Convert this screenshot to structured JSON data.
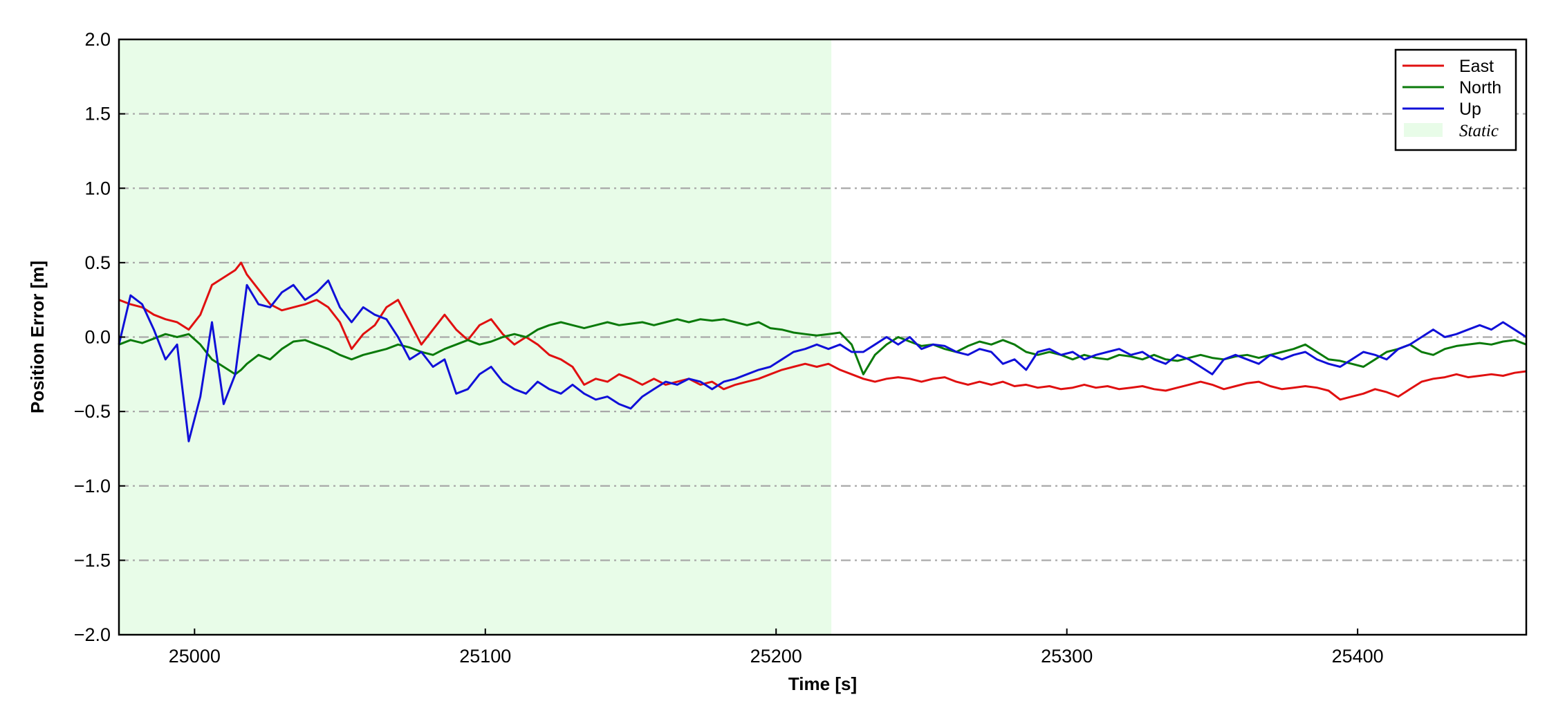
{
  "chart_data": {
    "type": "line",
    "xlabel": "Time [s]",
    "ylabel": "Position Error [m]",
    "xlim": [
      24974,
      25458
    ],
    "ylim": [
      -2.0,
      2.0
    ],
    "xticks": [
      25000,
      25100,
      25200,
      25300,
      25400
    ],
    "xtick_labels": [
      "25000",
      "25100",
      "25200",
      "25300",
      "25400"
    ],
    "yticks": [
      2.0,
      1.5,
      1.0,
      0.5,
      0.0,
      -0.5,
      -1.0,
      -1.5,
      -2.0
    ],
    "ytick_labels": [
      "2.0",
      "1.5",
      "1.0",
      "0.5",
      "0.0",
      "−0.5",
      "−1.0",
      "−1.5",
      "−2.0"
    ],
    "grid": "horizontal dash-dot",
    "legend_position": "top-right",
    "shaded_region": {
      "label": "Static",
      "x_start": 24974,
      "x_end": 25219,
      "color": "#e8fce8"
    },
    "x": [
      24974,
      24978,
      24982,
      24986,
      24990,
      24994,
      24998,
      25002,
      25006,
      25010,
      25014,
      25016,
      25018,
      25022,
      25026,
      25030,
      25034,
      25038,
      25042,
      25046,
      25050,
      25054,
      25058,
      25062,
      25066,
      25070,
      25074,
      25078,
      25082,
      25086,
      25090,
      25094,
      25098,
      25102,
      25106,
      25110,
      25114,
      25118,
      25122,
      25126,
      25130,
      25134,
      25138,
      25142,
      25146,
      25150,
      25154,
      25158,
      25162,
      25166,
      25170,
      25174,
      25178,
      25182,
      25186,
      25190,
      25194,
      25198,
      25202,
      25206,
      25210,
      25214,
      25218,
      25222,
      25226,
      25230,
      25234,
      25238,
      25242,
      25246,
      25250,
      25254,
      25258,
      25262,
      25266,
      25270,
      25274,
      25278,
      25282,
      25286,
      25290,
      25294,
      25298,
      25302,
      25306,
      25310,
      25314,
      25318,
      25322,
      25326,
      25330,
      25334,
      25338,
      25342,
      25346,
      25350,
      25354,
      25358,
      25362,
      25366,
      25370,
      25374,
      25378,
      25382,
      25386,
      25390,
      25394,
      25398,
      25402,
      25406,
      25410,
      25414,
      25418,
      25422,
      25426,
      25430,
      25434,
      25438,
      25442,
      25446,
      25450,
      25454,
      25458
    ],
    "series": [
      {
        "name": "East",
        "color": "#e01010",
        "values": [
          0.25,
          0.22,
          0.2,
          0.15,
          0.12,
          0.1,
          0.05,
          0.15,
          0.35,
          0.4,
          0.45,
          0.5,
          0.42,
          0.32,
          0.22,
          0.18,
          0.2,
          0.22,
          0.25,
          0.2,
          0.1,
          -0.08,
          0.02,
          0.08,
          0.2,
          0.25,
          0.1,
          -0.05,
          0.05,
          0.15,
          0.05,
          -0.02,
          0.08,
          0.12,
          0.02,
          -0.05,
          0.0,
          -0.05,
          -0.12,
          -0.15,
          -0.2,
          -0.32,
          -0.28,
          -0.3,
          -0.25,
          -0.28,
          -0.32,
          -0.28,
          -0.32,
          -0.3,
          -0.28,
          -0.32,
          -0.3,
          -0.35,
          -0.32,
          -0.3,
          -0.28,
          -0.25,
          -0.22,
          -0.2,
          -0.18,
          -0.2,
          -0.18,
          -0.22,
          -0.25,
          -0.28,
          -0.3,
          -0.28,
          -0.27,
          -0.28,
          -0.3,
          -0.28,
          -0.27,
          -0.3,
          -0.32,
          -0.3,
          -0.32,
          -0.3,
          -0.33,
          -0.32,
          -0.34,
          -0.33,
          -0.35,
          -0.34,
          -0.32,
          -0.34,
          -0.33,
          -0.35,
          -0.34,
          -0.33,
          -0.35,
          -0.36,
          -0.34,
          -0.32,
          -0.3,
          -0.32,
          -0.35,
          -0.33,
          -0.31,
          -0.3,
          -0.33,
          -0.35,
          -0.34,
          -0.33,
          -0.34,
          -0.36,
          -0.42,
          -0.4,
          -0.38,
          -0.35,
          -0.37,
          -0.4,
          -0.35,
          -0.3,
          -0.28,
          -0.27,
          -0.25,
          -0.27,
          -0.26,
          -0.25,
          -0.26,
          -0.24,
          -0.23
        ]
      },
      {
        "name": "North",
        "color": "#0a7a0a",
        "values": [
          -0.05,
          -0.02,
          -0.04,
          -0.01,
          0.02,
          0.0,
          0.02,
          -0.05,
          -0.15,
          -0.2,
          -0.25,
          -0.22,
          -0.18,
          -0.12,
          -0.15,
          -0.08,
          -0.03,
          -0.02,
          -0.05,
          -0.08,
          -0.12,
          -0.15,
          -0.12,
          -0.1,
          -0.08,
          -0.05,
          -0.07,
          -0.1,
          -0.12,
          -0.08,
          -0.05,
          -0.02,
          -0.05,
          -0.03,
          0.0,
          0.02,
          0.0,
          0.05,
          0.08,
          0.1,
          0.08,
          0.06,
          0.08,
          0.1,
          0.08,
          0.09,
          0.1,
          0.08,
          0.1,
          0.12,
          0.1,
          0.12,
          0.11,
          0.12,
          0.1,
          0.08,
          0.1,
          0.06,
          0.05,
          0.03,
          0.02,
          0.01,
          0.02,
          0.03,
          -0.05,
          -0.25,
          -0.12,
          -0.05,
          0.0,
          -0.03,
          -0.06,
          -0.05,
          -0.08,
          -0.1,
          -0.06,
          -0.03,
          -0.05,
          -0.02,
          -0.05,
          -0.1,
          -0.12,
          -0.1,
          -0.12,
          -0.15,
          -0.12,
          -0.14,
          -0.15,
          -0.12,
          -0.13,
          -0.15,
          -0.12,
          -0.15,
          -0.16,
          -0.14,
          -0.12,
          -0.14,
          -0.15,
          -0.13,
          -0.12,
          -0.14,
          -0.12,
          -0.1,
          -0.08,
          -0.05,
          -0.1,
          -0.15,
          -0.16,
          -0.18,
          -0.2,
          -0.15,
          -0.1,
          -0.08,
          -0.05,
          -0.1,
          -0.12,
          -0.08,
          -0.06,
          -0.05,
          -0.04,
          -0.05,
          -0.03,
          -0.02,
          -0.05
        ]
      },
      {
        "name": "Up",
        "color": "#1010d8",
        "values": [
          -0.05,
          0.28,
          0.22,
          0.05,
          -0.15,
          -0.05,
          -0.7,
          -0.4,
          0.1,
          -0.45,
          -0.25,
          0.05,
          0.35,
          0.22,
          0.2,
          0.3,
          0.35,
          0.25,
          0.3,
          0.38,
          0.2,
          0.1,
          0.2,
          0.15,
          0.12,
          0.0,
          -0.15,
          -0.1,
          -0.2,
          -0.15,
          -0.38,
          -0.35,
          -0.25,
          -0.2,
          -0.3,
          -0.35,
          -0.38,
          -0.3,
          -0.35,
          -0.38,
          -0.32,
          -0.38,
          -0.42,
          -0.4,
          -0.45,
          -0.48,
          -0.4,
          -0.35,
          -0.3,
          -0.32,
          -0.28,
          -0.3,
          -0.35,
          -0.3,
          -0.28,
          -0.25,
          -0.22,
          -0.2,
          -0.15,
          -0.1,
          -0.08,
          -0.05,
          -0.08,
          -0.05,
          -0.1,
          -0.1,
          -0.05,
          0.0,
          -0.05,
          0.0,
          -0.08,
          -0.05,
          -0.06,
          -0.1,
          -0.12,
          -0.08,
          -0.1,
          -0.18,
          -0.15,
          -0.22,
          -0.1,
          -0.08,
          -0.12,
          -0.1,
          -0.15,
          -0.12,
          -0.1,
          -0.08,
          -0.12,
          -0.1,
          -0.15,
          -0.18,
          -0.12,
          -0.15,
          -0.2,
          -0.25,
          -0.15,
          -0.12,
          -0.15,
          -0.18,
          -0.12,
          -0.15,
          -0.12,
          -0.1,
          -0.15,
          -0.18,
          -0.2,
          -0.15,
          -0.1,
          -0.12,
          -0.15,
          -0.08,
          -0.05,
          0.0,
          0.05,
          0.0,
          0.02,
          0.05,
          0.08,
          0.05,
          0.1,
          0.05,
          0.0
        ]
      }
    ]
  },
  "legend": {
    "items": [
      {
        "label": "East",
        "color": "#e01010",
        "kind": "line"
      },
      {
        "label": "North",
        "color": "#0a7a0a",
        "kind": "line"
      },
      {
        "label": "Up",
        "color": "#1010d8",
        "kind": "line"
      },
      {
        "label": "Static",
        "color": "#e8fce8",
        "kind": "patch"
      }
    ]
  }
}
